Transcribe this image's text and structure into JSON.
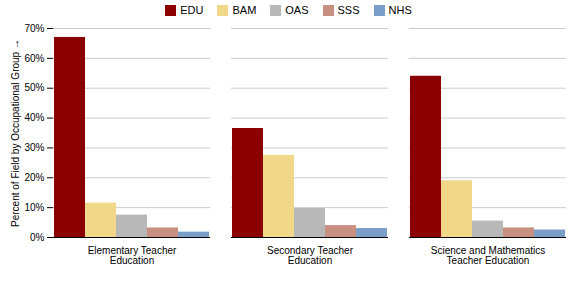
{
  "chart_data": {
    "type": "bar",
    "categories": [
      "Elementary Teacher\nEducation",
      "Secondary Teacher\nEducation",
      "Science and Mathematics\nTeacher Education"
    ],
    "series": [
      {
        "name": "EDU",
        "color": "#8B0000",
        "values": [
          0.67,
          0.365,
          0.54
        ]
      },
      {
        "name": "BAM",
        "color": "#F0D888",
        "values": [
          0.115,
          0.275,
          0.19
        ]
      },
      {
        "name": "OAS",
        "color": "#B8B8B8",
        "values": [
          0.075,
          0.097,
          0.055
        ]
      },
      {
        "name": "SSS",
        "color": "#C89080",
        "values": [
          0.032,
          0.04,
          0.032
        ]
      },
      {
        "name": "NHS",
        "color": "#7B9EC8",
        "values": [
          0.018,
          0.03,
          0.025
        ]
      }
    ],
    "ylabel": "Percent of Field by Occupational Group",
    "ylim": [
      0,
      0.7
    ],
    "yticks": [
      {
        "value": 0,
        "label": "0%"
      },
      {
        "value": 0.1,
        "label": "10%"
      },
      {
        "value": 0.2,
        "label": "20%"
      },
      {
        "value": 0.3,
        "label": "30%"
      },
      {
        "value": 0.4,
        "label": "40%"
      },
      {
        "value": 0.5,
        "label": "50%"
      },
      {
        "value": 0.6,
        "label": "60%"
      },
      {
        "value": 0.7,
        "label": "70%"
      }
    ],
    "grid": true,
    "legend": "top"
  }
}
